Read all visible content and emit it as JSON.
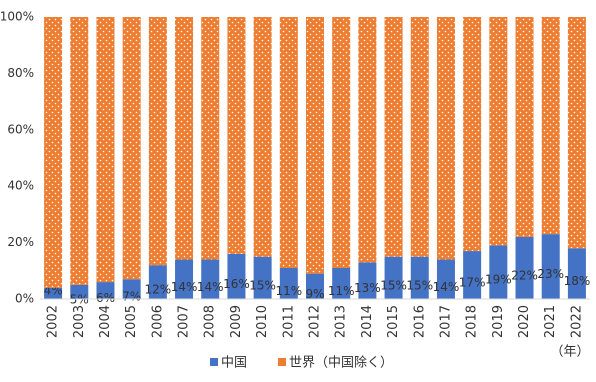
{
  "chart_data": {
    "type": "stacked-bar-100",
    "categories": [
      "2002",
      "2003",
      "2004",
      "2005",
      "2006",
      "2007",
      "2008",
      "2009",
      "2010",
      "2011",
      "2012",
      "2013",
      "2014",
      "2015",
      "2016",
      "2017",
      "2018",
      "2019",
      "2020",
      "2021",
      "2022"
    ],
    "series": [
      {
        "name": "中国",
        "color": "#4472c4",
        "values": [
          4,
          5,
          6,
          7,
          12,
          14,
          14,
          16,
          15,
          11,
          9,
          11,
          13,
          15,
          15,
          14,
          17,
          19,
          22,
          23,
          18
        ],
        "value_labels": [
          "4%",
          "5%",
          "6%",
          "7%",
          "12%",
          "14%",
          "14%",
          "16%",
          "15%",
          "11%",
          "9%",
          "11%",
          "13%",
          "15%",
          "15%",
          "14%",
          "17%",
          "19%",
          "22%",
          "23%",
          "18%"
        ]
      },
      {
        "name": "世界（中国除く）",
        "color": "#ed7d31",
        "values": [
          96,
          95,
          94,
          93,
          88,
          86,
          86,
          84,
          85,
          89,
          91,
          89,
          87,
          85,
          85,
          86,
          83,
          81,
          78,
          77,
          82
        ]
      }
    ],
    "x_unit": "（年）",
    "ylim": [
      0,
      100
    ],
    "yticks": [
      {
        "value": 0,
        "label": "0%"
      },
      {
        "value": 20,
        "label": "20%"
      },
      {
        "value": 40,
        "label": "40%"
      },
      {
        "value": 60,
        "label": "60%"
      },
      {
        "value": 80,
        "label": "80%"
      },
      {
        "value": 100,
        "label": "100%"
      }
    ],
    "legend": "bottom"
  }
}
